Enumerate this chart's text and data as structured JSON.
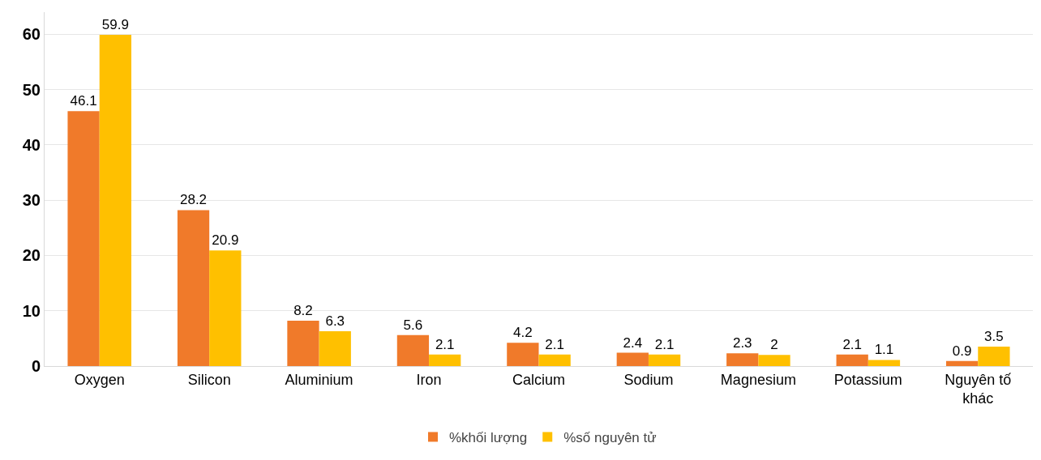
{
  "chart_data": {
    "type": "bar",
    "categories": [
      "Oxygen",
      "Silicon",
      "Aluminium",
      "Iron",
      "Calcium",
      "Sodium",
      "Magnesium",
      "Potassium",
      "Nguyên tố khác"
    ],
    "series": [
      {
        "name": "%khối lượng",
        "color": "#f07a2a",
        "values": [
          46.1,
          28.2,
          8.2,
          5.6,
          4.2,
          2.4,
          2.3,
          2.1,
          0.9
        ]
      },
      {
        "name": "%số nguyên tử",
        "color": "#ffc000",
        "values": [
          59.9,
          20.9,
          6.3,
          2.1,
          2.1,
          2.1,
          2,
          1.1,
          3.5
        ]
      }
    ],
    "ylim": [
      0,
      64
    ],
    "yticks": [
      0,
      10,
      20,
      30,
      40,
      50,
      60
    ],
    "grid": "y",
    "legend": "bottom",
    "data_labels": true
  }
}
